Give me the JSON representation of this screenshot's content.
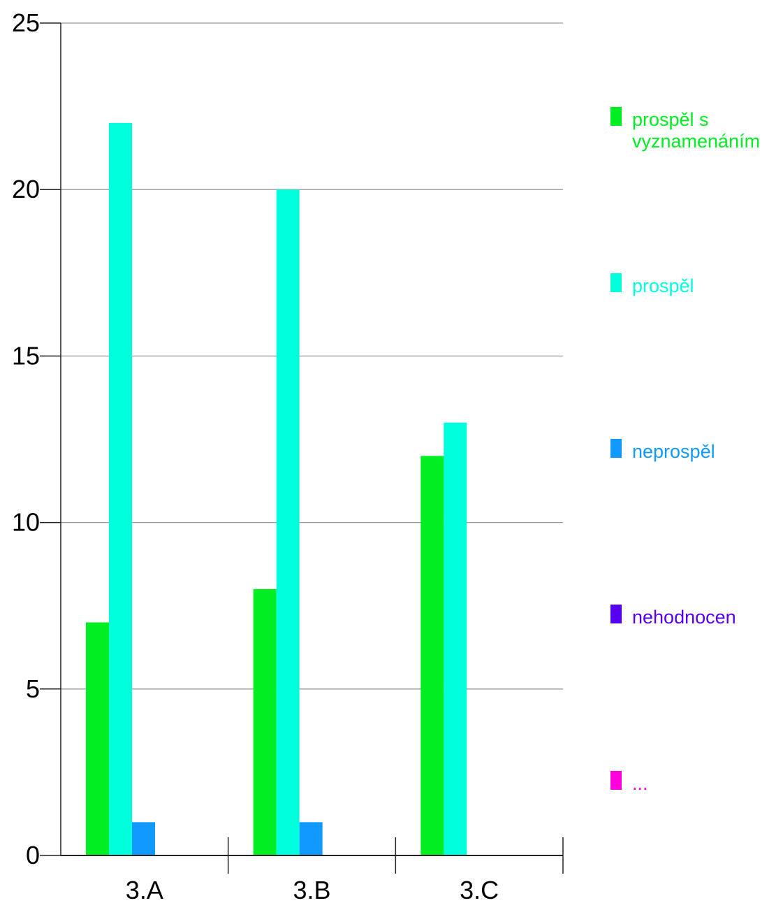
{
  "chart_data": {
    "type": "bar",
    "categories": [
      "3.A",
      "3.B",
      "3.C"
    ],
    "series": [
      {
        "name": "prospěl s vyznamenáním",
        "name_lines": [
          "prospěl s",
          "vyznamenáním"
        ],
        "color": "#00ee22",
        "values": [
          7,
          8,
          12
        ]
      },
      {
        "name": "prospěl",
        "name_lines": [
          "prospěl"
        ],
        "color": "#00ffdd",
        "values": [
          22,
          20,
          13
        ]
      },
      {
        "name": "neprospěl",
        "name_lines": [
          "neprospěl"
        ],
        "color": "#1199ff",
        "values": [
          1,
          1,
          0
        ]
      },
      {
        "name": "nehodnocen",
        "name_lines": [
          "nehodnocen"
        ],
        "color": "#5500ee",
        "values": [
          0,
          0,
          0
        ]
      },
      {
        "name": "...",
        "name_lines": [
          "..."
        ],
        "color": "#ff00dd",
        "values": [
          0,
          0,
          0
        ]
      }
    ],
    "title": "",
    "xlabel": "",
    "ylabel": "",
    "ylim": [
      0,
      25
    ],
    "yticks": [
      0,
      5,
      10,
      15,
      20,
      25
    ],
    "grid": true,
    "legend_position": "right"
  }
}
